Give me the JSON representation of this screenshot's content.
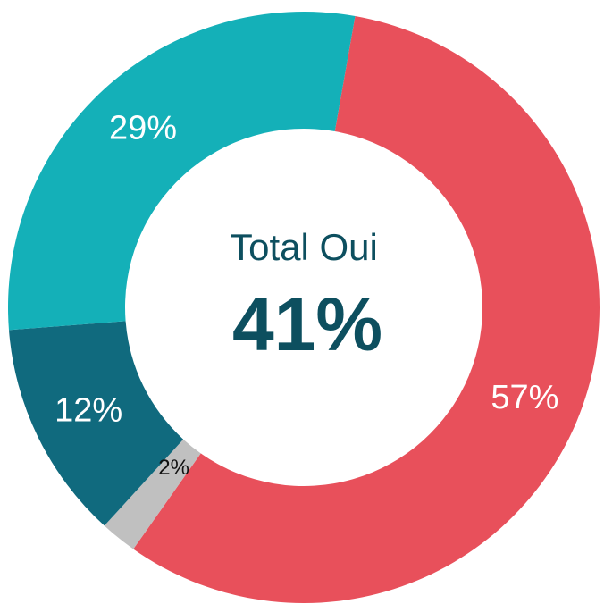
{
  "chart_data": {
    "type": "donut",
    "values": [
      57,
      2,
      12,
      29
    ],
    "value_labels": [
      "57%",
      "2%",
      "12%",
      "29%"
    ],
    "colors": [
      "#e8505b",
      "#c0c0c0",
      "#106a7e",
      "#14b0b8"
    ],
    "label_colors": [
      "#ffffff",
      "#111111",
      "#ffffff",
      "#ffffff"
    ],
    "start_angle": 10,
    "annotations": [
      "Total Oui",
      "41%"
    ]
  }
}
